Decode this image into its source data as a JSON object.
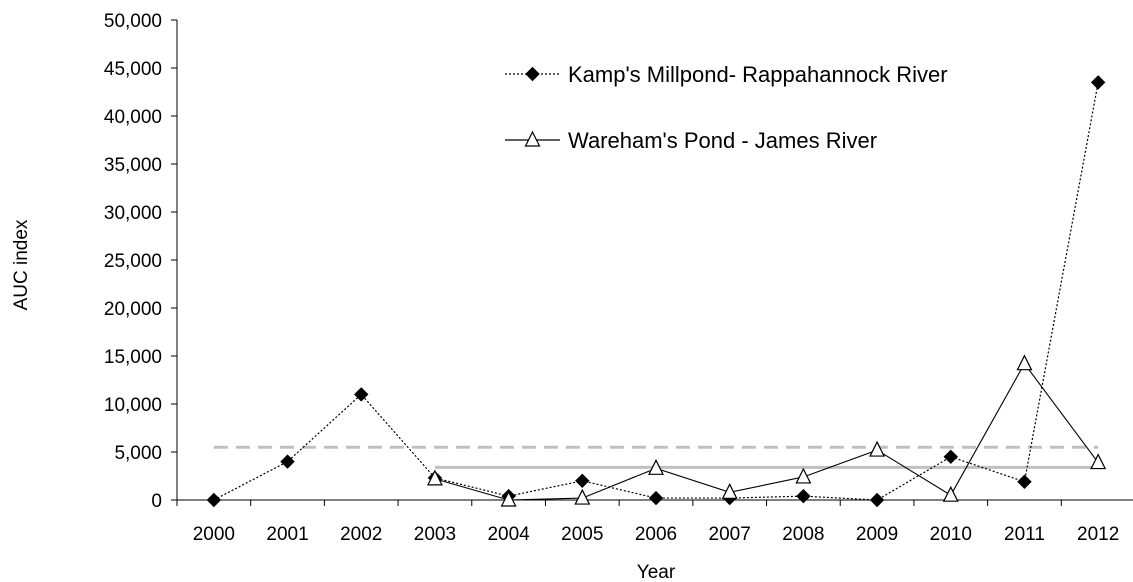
{
  "chart_data": {
    "type": "line",
    "title": "",
    "xlabel": "Year",
    "ylabel": "AUC index",
    "ylim": [
      0,
      50000
    ],
    "y_ticks": [
      0,
      5000,
      10000,
      15000,
      20000,
      25000,
      30000,
      35000,
      40000,
      45000,
      50000
    ],
    "y_tick_labels": [
      "0",
      "5,000",
      "10,000",
      "15,000",
      "20,000",
      "25,000",
      "30,000",
      "35,000",
      "40,000",
      "45,000",
      "50,000"
    ],
    "categories": [
      "2000",
      "2001",
      "2002",
      "2003",
      "2004",
      "2005",
      "2006",
      "2007",
      "2008",
      "2009",
      "2010",
      "2011",
      "2012"
    ],
    "grid": false,
    "legend_position": "top-center",
    "series": [
      {
        "name": "Kamp's Millpond- Rappahannock River",
        "style": "dotted",
        "marker": "filled-diamond",
        "color": "#000000",
        "values": [
          0,
          4000,
          11000,
          2300,
          400,
          2000,
          200,
          200,
          400,
          0,
          4500,
          1900,
          43500
        ]
      },
      {
        "name": "Wareham's Pond - James River",
        "style": "solid",
        "marker": "open-triangle",
        "color": "#000000",
        "values": [
          null,
          null,
          null,
          2200,
          0,
          200,
          3300,
          800,
          2400,
          5200,
          500,
          14200,
          3900
        ]
      }
    ],
    "reference_lines": [
      {
        "style": "dashed",
        "color": "#c0c0c0",
        "value": 5500,
        "from": "2000",
        "to": "2012"
      },
      {
        "style": "solid",
        "color": "#c0c0c0",
        "value": 3400,
        "from": "2003",
        "to": "2012"
      }
    ]
  }
}
